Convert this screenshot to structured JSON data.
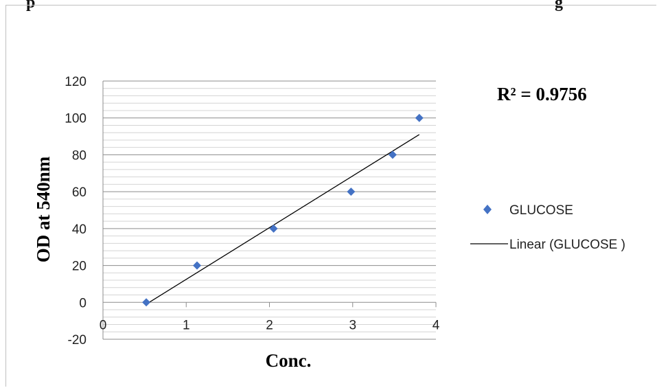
{
  "page_header": {
    "left_fragment": "p",
    "right_fragment": "g"
  },
  "chart_data": {
    "type": "scatter",
    "title": "",
    "xlabel": "Conc.",
    "ylabel": "OD at 540nm",
    "xlim": [
      0,
      4
    ],
    "ylim": [
      -20,
      120
    ],
    "x_ticks": [
      "0",
      "1",
      "2",
      "3",
      "4"
    ],
    "y_ticks": [
      "-20",
      "0",
      "20",
      "40",
      "60",
      "80",
      "100",
      "120"
    ],
    "grid": true,
    "legend_position": "right",
    "series": [
      {
        "name": "GLUCOSE",
        "marker": "diamond",
        "color": "#4472c4",
        "x": [
          0.52,
          1.13,
          2.05,
          2.98,
          3.48,
          3.8
        ],
        "y": [
          0,
          20,
          40,
          60,
          80,
          100
        ]
      }
    ],
    "trendline": {
      "name": "Linear (GLUCOSE )",
      "type": "linear",
      "color": "#000000",
      "x": [
        0.52,
        3.8
      ],
      "y": [
        -1,
        91
      ]
    },
    "annotation": "R² = 0.9756"
  }
}
